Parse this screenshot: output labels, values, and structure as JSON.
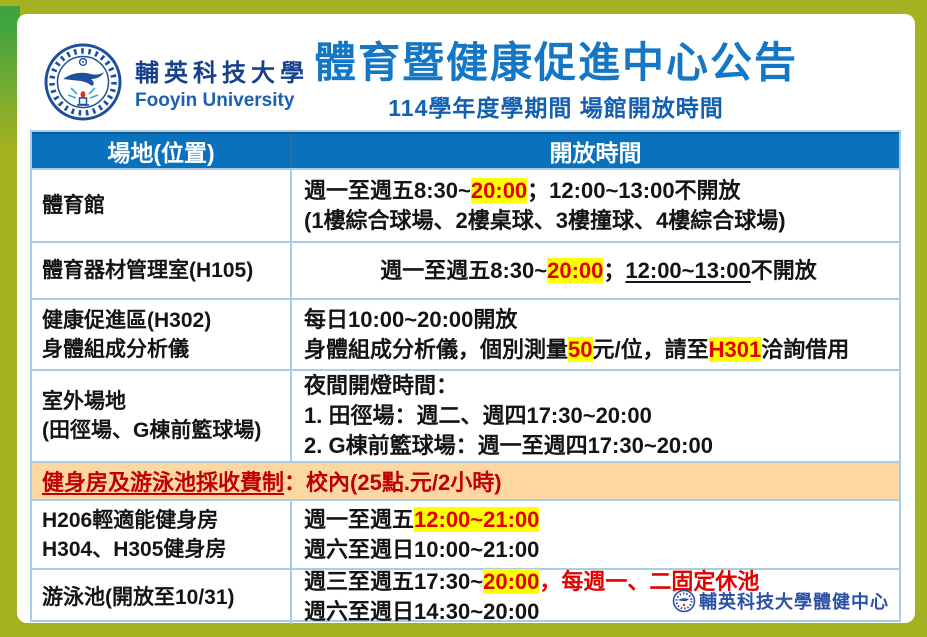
{
  "page": {
    "title": "體育暨健康促進中心公告",
    "subtitle": "114學年度學期間 場館開放時間"
  },
  "brand": {
    "name_zh": "輔英科技大學",
    "name_en": "Fooyin University"
  },
  "colors": {
    "header_blue": "#0a71bc",
    "title_blue": "#1377c5",
    "highlight_yellow": "#ffff00",
    "highlight_red": "#e50000",
    "banner_bg": "#fcd7a1",
    "banner_red": "#c00000",
    "border_olive": "#a4b121",
    "table_border_blue": "#a9cee3"
  },
  "table": {
    "headers": [
      "場地(位置)",
      "開放時間"
    ],
    "rows": [
      {
        "type": "data",
        "location": [
          "體育館"
        ],
        "hours": [
          [
            {
              "t": "週一至週五8:30~"
            },
            {
              "t": "20:00",
              "hl": true,
              "red": true
            },
            {
              "t": "；12:00~13:00不開放"
            }
          ],
          [
            {
              "t": "(1樓綜合球場、2樓桌球、3樓撞球、4樓綜合球場)"
            }
          ]
        ]
      },
      {
        "type": "data",
        "center": true,
        "location": [
          "體育器材管理室(H105)"
        ],
        "hours": [
          [
            {
              "t": "週一至週五8:30~"
            },
            {
              "t": "20:00",
              "hl": true,
              "red": true
            },
            {
              "t": "；"
            },
            {
              "t": "12:00~13:00",
              "u": true
            },
            {
              "t": "不開放"
            }
          ]
        ]
      },
      {
        "type": "data",
        "location": [
          "健康促進區(H302)",
          "身體組成分析儀"
        ],
        "hours": [
          [
            {
              "t": "每日10:00~20:00開放"
            }
          ],
          [
            {
              "t": "身體組成分析儀，個別測量"
            },
            {
              "t": "50",
              "hl": true,
              "red": true
            },
            {
              "t": "元/位，請至"
            },
            {
              "t": "H301",
              "hl": true,
              "red": true
            },
            {
              "t": "洽詢借用"
            }
          ]
        ]
      },
      {
        "type": "data",
        "location": [
          "室外場地",
          "(田徑場、G棟前籃球場)"
        ],
        "hours": [
          [
            {
              "t": "夜間開燈時間："
            }
          ],
          [
            {
              "t": "1. 田徑場：週二、週四17:30~20:00"
            }
          ],
          [
            {
              "t": "2. G棟前籃球場：週一至週四17:30~20:00"
            }
          ]
        ]
      },
      {
        "type": "banner",
        "segments": [
          {
            "t": "健身房及游泳池採收費制",
            "u": true
          },
          {
            "t": "：校內(25點.元/2小時)"
          }
        ]
      },
      {
        "type": "data",
        "location": [
          "H206輕適能健身房",
          "H304、H305健身房"
        ],
        "hours": [
          [
            {
              "t": "週一至週五"
            },
            {
              "t": "12:00~21:00",
              "hl": true,
              "red": true
            }
          ],
          [
            {
              "t": "週六至週日10:00~21:00"
            }
          ]
        ]
      },
      {
        "type": "data",
        "location": [
          "游泳池(開放至10/31)"
        ],
        "hours": [
          [
            {
              "t": "週三至週五17:30~"
            },
            {
              "t": "20:00",
              "hl": true,
              "red": true
            },
            {
              "t": "，每週一、二固定休池",
              "red": true
            }
          ],
          [
            {
              "t": "週六至週日14:30~20:00"
            }
          ]
        ]
      }
    ]
  },
  "footer": {
    "stamp": "輔英科技大學體健中心"
  }
}
